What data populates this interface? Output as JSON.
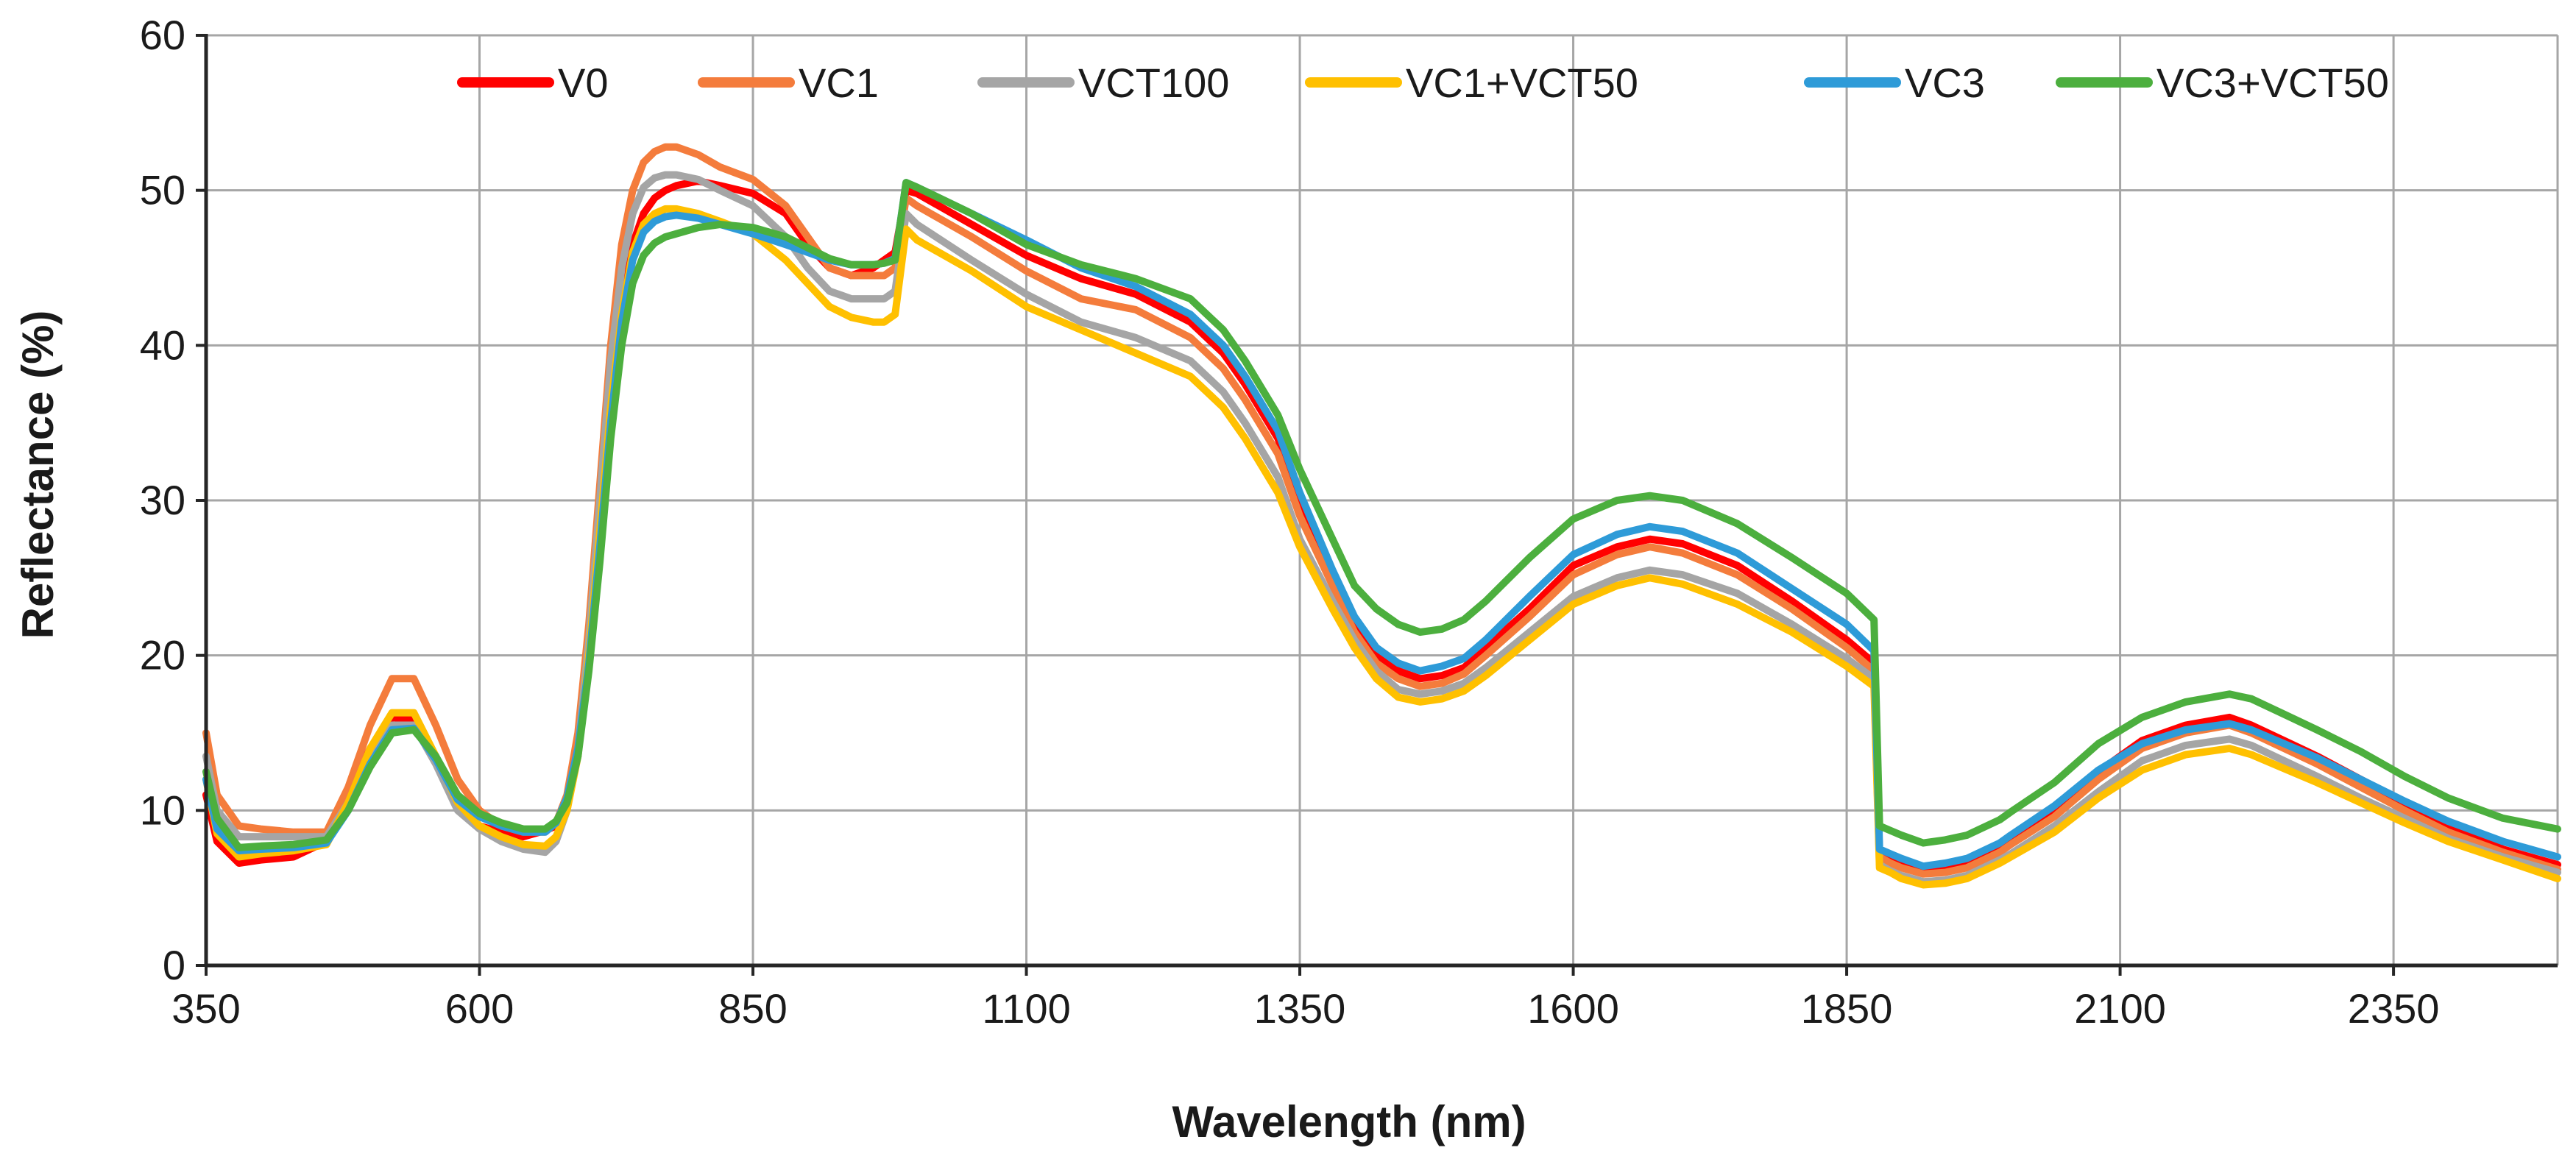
{
  "chart_data": {
    "type": "line",
    "title": "",
    "xlabel": "Wavelength (nm)",
    "ylabel": "Reflectance (%)",
    "xlim": [
      350,
      2500
    ],
    "ylim": [
      0,
      60
    ],
    "xticks": [
      350,
      600,
      850,
      1100,
      1350,
      1600,
      1850,
      2100,
      2350
    ],
    "yticks": [
      0,
      10,
      20,
      30,
      40,
      50,
      60
    ],
    "grid": true,
    "legend_position": "top",
    "series": [
      {
        "name": "V0",
        "color": "#ff0000",
        "x": [
          350,
          360,
          380,
          400,
          430,
          460,
          480,
          500,
          520,
          540,
          560,
          580,
          600,
          620,
          640,
          660,
          670,
          680,
          690,
          700,
          710,
          720,
          730,
          740,
          750,
          760,
          770,
          780,
          800,
          820,
          850,
          880,
          900,
          920,
          940,
          960,
          970,
          980,
          990,
          1000,
          1050,
          1100,
          1150,
          1200,
          1250,
          1280,
          1300,
          1330,
          1350,
          1380,
          1400,
          1420,
          1440,
          1460,
          1480,
          1500,
          1520,
          1560,
          1600,
          1640,
          1670,
          1700,
          1750,
          1800,
          1850,
          1875,
          1880,
          1890,
          1900,
          1920,
          1940,
          1960,
          1990,
          2000,
          2040,
          2080,
          2120,
          2160,
          2200,
          2220,
          2250,
          2280,
          2320,
          2360,
          2400,
          2450,
          2500
        ],
        "y": [
          11.0,
          8.0,
          6.6,
          6.8,
          7.0,
          8.0,
          11.0,
          14.0,
          16.0,
          15.8,
          13.5,
          10.5,
          9.0,
          8.6,
          8.3,
          8.7,
          9.0,
          10.5,
          14.0,
          20.0,
          28.0,
          36.0,
          42.0,
          46.5,
          48.5,
          49.5,
          50.0,
          50.3,
          50.6,
          50.3,
          49.8,
          48.5,
          46.5,
          45.0,
          44.5,
          45.0,
          45.5,
          46.0,
          50.0,
          49.8,
          47.8,
          45.8,
          44.3,
          43.3,
          41.5,
          39.5,
          37.5,
          34.0,
          30.0,
          25.0,
          22.0,
          20.0,
          19.0,
          18.5,
          18.7,
          19.2,
          20.5,
          23.0,
          25.8,
          27.0,
          27.5,
          27.2,
          25.8,
          23.5,
          21.0,
          19.5,
          7.0,
          6.8,
          6.5,
          6.0,
          6.2,
          6.5,
          7.5,
          8.0,
          10.0,
          12.5,
          14.5,
          15.5,
          16.0,
          15.5,
          14.5,
          13.5,
          12.0,
          10.5,
          9.0,
          7.5,
          6.5
        ]
      },
      {
        "name": "VC1",
        "color": "#f47c3c",
        "x": [
          350,
          360,
          380,
          400,
          430,
          460,
          480,
          500,
          520,
          540,
          560,
          580,
          600,
          620,
          640,
          660,
          670,
          680,
          690,
          700,
          710,
          720,
          730,
          740,
          750,
          760,
          770,
          780,
          800,
          820,
          850,
          880,
          900,
          920,
          940,
          960,
          970,
          980,
          990,
          1000,
          1050,
          1100,
          1150,
          1200,
          1250,
          1280,
          1300,
          1330,
          1350,
          1380,
          1400,
          1420,
          1440,
          1460,
          1480,
          1500,
          1520,
          1560,
          1600,
          1640,
          1670,
          1700,
          1750,
          1800,
          1850,
          1875,
          1880,
          1890,
          1900,
          1920,
          1940,
          1960,
          1990,
          2000,
          2040,
          2080,
          2120,
          2160,
          2200,
          2220,
          2250,
          2280,
          2320,
          2360,
          2400,
          2450,
          2500
        ],
        "y": [
          15.0,
          11.0,
          9.0,
          8.8,
          8.6,
          8.6,
          11.5,
          15.5,
          18.5,
          18.5,
          15.5,
          12.0,
          10.0,
          9.0,
          8.6,
          8.6,
          9.2,
          11.0,
          15.0,
          22.0,
          31.0,
          40.0,
          46.5,
          50.0,
          51.8,
          52.5,
          52.8,
          52.8,
          52.3,
          51.5,
          50.7,
          49.0,
          47.0,
          45.0,
          44.5,
          44.5,
          44.5,
          45.0,
          49.5,
          49.0,
          47.0,
          44.8,
          43.0,
          42.3,
          40.5,
          38.5,
          36.5,
          33.0,
          29.0,
          24.5,
          21.5,
          19.5,
          18.5,
          18.0,
          18.2,
          18.8,
          20.0,
          22.5,
          25.2,
          26.5,
          27.0,
          26.6,
          25.2,
          23.0,
          20.5,
          19.0,
          7.0,
          6.6,
          6.3,
          5.9,
          6.0,
          6.3,
          7.3,
          7.8,
          9.6,
          12.0,
          14.0,
          15.0,
          15.5,
          15.0,
          14.0,
          13.0,
          11.5,
          10.0,
          8.6,
          7.3,
          6.2
        ]
      },
      {
        "name": "VCT100",
        "color": "#a5a5a5",
        "x": [
          350,
          360,
          380,
          400,
          430,
          460,
          480,
          500,
          520,
          540,
          560,
          580,
          600,
          620,
          640,
          660,
          670,
          680,
          690,
          700,
          710,
          720,
          730,
          740,
          750,
          760,
          770,
          780,
          800,
          820,
          850,
          880,
          900,
          920,
          940,
          960,
          970,
          980,
          990,
          1000,
          1050,
          1100,
          1150,
          1200,
          1250,
          1280,
          1300,
          1330,
          1350,
          1380,
          1400,
          1420,
          1440,
          1460,
          1480,
          1500,
          1520,
          1560,
          1600,
          1640,
          1670,
          1700,
          1750,
          1800,
          1850,
          1875,
          1880,
          1890,
          1900,
          1920,
          1940,
          1960,
          1990,
          2000,
          2040,
          2080,
          2120,
          2160,
          2200,
          2220,
          2250,
          2280,
          2320,
          2360,
          2400,
          2450,
          2500
        ],
        "y": [
          13.5,
          10.0,
          8.3,
          8.3,
          8.3,
          8.3,
          10.5,
          13.5,
          15.5,
          15.5,
          13.0,
          10.0,
          8.8,
          8.0,
          7.5,
          7.3,
          8.0,
          10.0,
          14.0,
          21.0,
          30.0,
          39.0,
          45.0,
          48.5,
          50.2,
          50.8,
          51.0,
          51.0,
          50.7,
          50.0,
          49.0,
          47.0,
          45.0,
          43.5,
          43.0,
          43.0,
          43.0,
          43.5,
          48.5,
          47.8,
          45.5,
          43.3,
          41.5,
          40.5,
          39.0,
          37.0,
          35.0,
          31.5,
          27.5,
          23.5,
          21.0,
          19.0,
          17.8,
          17.5,
          17.7,
          18.2,
          19.2,
          21.5,
          23.8,
          25.0,
          25.5,
          25.2,
          24.0,
          22.0,
          19.8,
          18.5,
          6.5,
          6.1,
          5.8,
          5.4,
          5.5,
          5.8,
          6.8,
          7.2,
          9.0,
          11.2,
          13.2,
          14.2,
          14.6,
          14.2,
          13.2,
          12.2,
          10.8,
          9.5,
          8.2,
          7.0,
          6.0
        ]
      },
      {
        "name": "VC1+VCT50",
        "color": "#ffc000",
        "x": [
          350,
          360,
          380,
          400,
          430,
          460,
          480,
          500,
          520,
          540,
          560,
          580,
          600,
          620,
          640,
          660,
          670,
          680,
          690,
          700,
          710,
          720,
          730,
          740,
          750,
          760,
          770,
          780,
          800,
          820,
          850,
          880,
          900,
          920,
          940,
          960,
          970,
          980,
          990,
          1000,
          1050,
          1100,
          1150,
          1200,
          1250,
          1280,
          1300,
          1330,
          1350,
          1380,
          1400,
          1420,
          1440,
          1460,
          1480,
          1500,
          1520,
          1560,
          1600,
          1640,
          1670,
          1700,
          1750,
          1800,
          1850,
          1875,
          1880,
          1890,
          1900,
          1920,
          1940,
          1960,
          1990,
          2000,
          2040,
          2080,
          2120,
          2160,
          2200,
          2220,
          2250,
          2280,
          2320,
          2360,
          2400,
          2450,
          2500
        ],
        "y": [
          12.0,
          8.5,
          7.0,
          7.2,
          7.4,
          7.8,
          10.5,
          14.0,
          16.3,
          16.3,
          13.5,
          10.5,
          9.0,
          8.3,
          7.8,
          7.7,
          8.3,
          10.0,
          13.5,
          20.0,
          28.0,
          36.0,
          42.0,
          46.0,
          47.8,
          48.5,
          48.8,
          48.8,
          48.5,
          48.0,
          47.2,
          45.5,
          44.0,
          42.5,
          41.8,
          41.5,
          41.5,
          42.0,
          47.5,
          46.8,
          44.8,
          42.5,
          41.0,
          39.5,
          38.0,
          36.0,
          34.0,
          30.5,
          27.0,
          23.0,
          20.5,
          18.5,
          17.3,
          17.0,
          17.2,
          17.7,
          18.7,
          21.0,
          23.3,
          24.5,
          25.0,
          24.6,
          23.3,
          21.5,
          19.3,
          18.0,
          6.3,
          6.0,
          5.6,
          5.2,
          5.3,
          5.6,
          6.6,
          7.0,
          8.6,
          10.8,
          12.6,
          13.6,
          14.0,
          13.6,
          12.7,
          11.8,
          10.5,
          9.2,
          8.0,
          6.8,
          5.6
        ]
      },
      {
        "name": "VC3",
        "color": "#2e9bd8",
        "x": [
          350,
          360,
          380,
          400,
          430,
          460,
          480,
          500,
          520,
          540,
          560,
          580,
          600,
          620,
          640,
          660,
          670,
          680,
          690,
          700,
          710,
          720,
          730,
          740,
          750,
          760,
          770,
          780,
          800,
          820,
          850,
          880,
          900,
          920,
          940,
          960,
          970,
          980,
          990,
          1000,
          1050,
          1100,
          1150,
          1200,
          1250,
          1280,
          1300,
          1330,
          1350,
          1380,
          1400,
          1420,
          1440,
          1460,
          1480,
          1500,
          1520,
          1560,
          1600,
          1640,
          1670,
          1700,
          1750,
          1800,
          1850,
          1875,
          1880,
          1890,
          1900,
          1920,
          1940,
          1960,
          1990,
          2000,
          2040,
          2080,
          2120,
          2160,
          2200,
          2220,
          2250,
          2280,
          2320,
          2360,
          2400,
          2450,
          2500
        ],
        "y": [
          12.0,
          8.8,
          7.4,
          7.5,
          7.6,
          7.9,
          10.0,
          13.0,
          15.2,
          15.3,
          13.3,
          10.7,
          9.6,
          9.0,
          8.6,
          8.6,
          9.2,
          10.8,
          14.0,
          19.5,
          27.0,
          35.0,
          41.5,
          45.5,
          47.3,
          48.0,
          48.3,
          48.4,
          48.2,
          47.8,
          47.2,
          46.5,
          46.0,
          45.5,
          45.2,
          45.2,
          45.3,
          45.6,
          50.5,
          50.2,
          48.5,
          46.8,
          45.0,
          43.8,
          42.0,
          40.0,
          38.0,
          34.5,
          30.5,
          25.5,
          22.5,
          20.5,
          19.5,
          19.0,
          19.3,
          19.8,
          21.0,
          23.8,
          26.5,
          27.8,
          28.3,
          28.0,
          26.6,
          24.3,
          22.0,
          20.3,
          7.5,
          7.2,
          6.9,
          6.4,
          6.6,
          6.9,
          7.9,
          8.4,
          10.3,
          12.6,
          14.3,
          15.2,
          15.6,
          15.2,
          14.3,
          13.4,
          12.0,
          10.6,
          9.3,
          8.0,
          7.0
        ]
      },
      {
        "name": "VC3+VCT50",
        "color": "#4caf3e",
        "x": [
          350,
          360,
          380,
          400,
          430,
          460,
          480,
          500,
          520,
          540,
          560,
          580,
          600,
          620,
          640,
          660,
          670,
          680,
          690,
          700,
          710,
          720,
          730,
          740,
          750,
          760,
          770,
          780,
          800,
          820,
          850,
          880,
          900,
          920,
          940,
          960,
          970,
          980,
          990,
          1000,
          1050,
          1100,
          1150,
          1200,
          1250,
          1280,
          1300,
          1330,
          1350,
          1380,
          1400,
          1420,
          1440,
          1460,
          1480,
          1500,
          1520,
          1560,
          1600,
          1640,
          1670,
          1700,
          1750,
          1800,
          1850,
          1875,
          1880,
          1890,
          1900,
          1920,
          1940,
          1960,
          1990,
          2000,
          2040,
          2080,
          2120,
          2160,
          2200,
          2220,
          2250,
          2280,
          2320,
          2360,
          2400,
          2450,
          2500
        ],
        "y": [
          12.5,
          9.5,
          7.6,
          7.7,
          7.8,
          8.1,
          10.0,
          12.8,
          15.0,
          15.2,
          13.5,
          11.0,
          9.8,
          9.2,
          8.8,
          8.8,
          9.3,
          10.5,
          13.5,
          19.0,
          26.0,
          34.0,
          40.0,
          44.0,
          45.8,
          46.6,
          47.0,
          47.2,
          47.6,
          47.8,
          47.6,
          47.0,
          46.3,
          45.6,
          45.2,
          45.2,
          45.3,
          45.5,
          50.5,
          50.2,
          48.5,
          46.5,
          45.2,
          44.3,
          43.0,
          41.0,
          39.0,
          35.5,
          32.0,
          27.5,
          24.5,
          23.0,
          22.0,
          21.5,
          21.7,
          22.3,
          23.5,
          26.3,
          28.8,
          30.0,
          30.3,
          30.0,
          28.5,
          26.3,
          24.0,
          22.3,
          9.0,
          8.7,
          8.4,
          7.9,
          8.1,
          8.4,
          9.4,
          9.9,
          11.8,
          14.3,
          16.0,
          17.0,
          17.5,
          17.2,
          16.2,
          15.2,
          13.8,
          12.2,
          10.8,
          9.5,
          8.8
        ]
      }
    ]
  }
}
